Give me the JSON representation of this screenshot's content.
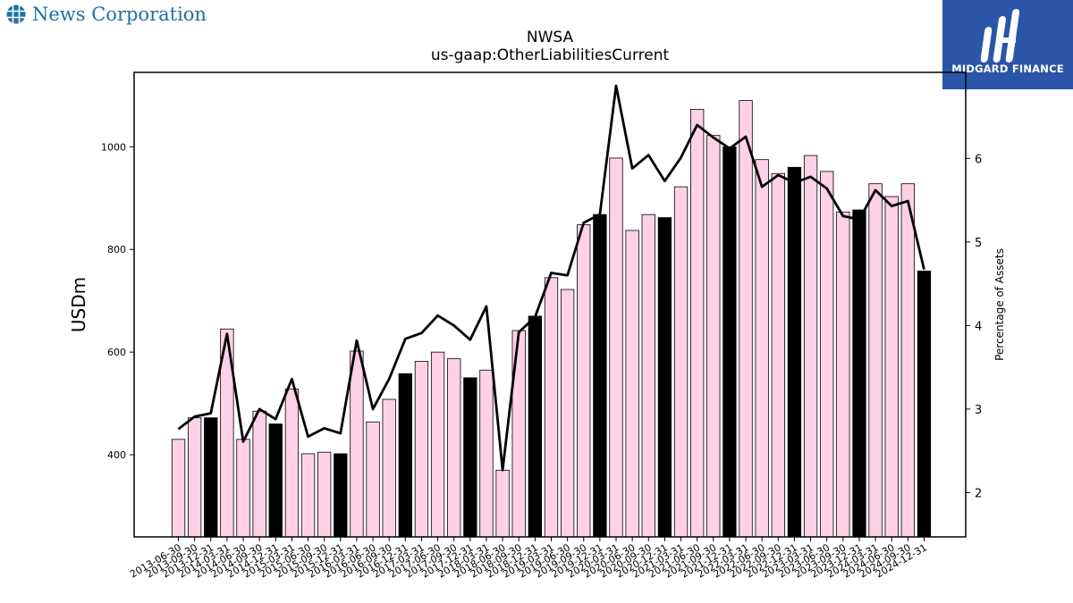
{
  "header": {
    "company_name": "News Corporation",
    "logo_text": "MIDGARD FINANCE"
  },
  "chart_data": {
    "type": "bar",
    "title": "NWSA",
    "subtitle": "us-gaap:OtherLiabilitiesCurrent",
    "ylabel": "USDm",
    "y2label": "Percentage of Assets",
    "ylim": [
      240,
      1145
    ],
    "y2lim": [
      1.47,
      7.03
    ],
    "yticks": [
      400,
      600,
      800,
      1000
    ],
    "y2ticks": [
      2,
      3,
      4,
      5,
      6
    ],
    "categories": [
      "2013-06-30",
      "2013-09-30",
      "2013-12-31",
      "2014-03-31",
      "2014-06-30",
      "2014-09-30",
      "2014-12-31",
      "2015-03-31",
      "2015-06-30",
      "2015-09-30",
      "2015-12-31",
      "2016-03-31",
      "2016-06-30",
      "2016-09-30",
      "2016-12-31",
      "2017-03-31",
      "2017-06-30",
      "2017-09-30",
      "2017-12-31",
      "2018-03-31",
      "2018-06-30",
      "2018-09-30",
      "2018-12-31",
      "2019-03-31",
      "2019-06-30",
      "2019-09-30",
      "2019-12-31",
      "2020-03-31",
      "2020-06-30",
      "2020-09-30",
      "2020-12-31",
      "2021-03-31",
      "2021-06-30",
      "2021-09-30",
      "2021-12-31",
      "2022-03-31",
      "2022-06-30",
      "2022-09-30",
      "2022-12-31",
      "2023-03-31",
      "2023-06-30",
      "2023-09-30",
      "2023-12-31",
      "2024-03-31",
      "2024-06-30",
      "2024-09-30",
      "2024-12-31"
    ],
    "series": [
      {
        "values": [
          430,
          472,
          472,
          645,
          430,
          485,
          460,
          528,
          402,
          405,
          402,
          602,
          464,
          508,
          558,
          582,
          600,
          587,
          550,
          565,
          370,
          642,
          670,
          745,
          722,
          848,
          868,
          978,
          837,
          868,
          862,
          922,
          1073,
          1022,
          1000,
          1090,
          975,
          948,
          960,
          983,
          952,
          873,
          877,
          928,
          903,
          928,
          758
        ],
        "highlight": [
          false,
          false,
          true,
          false,
          false,
          false,
          true,
          false,
          false,
          false,
          true,
          false,
          false,
          false,
          true,
          false,
          false,
          false,
          true,
          false,
          false,
          false,
          true,
          false,
          false,
          false,
          true,
          false,
          false,
          false,
          true,
          false,
          false,
          false,
          true,
          false,
          false,
          false,
          true,
          false,
          false,
          false,
          true,
          false,
          false,
          false,
          true
        ],
        "color": "#ffd1e6",
        "highlight_color": "#000000"
      },
      {
        "axis": "right",
        "type": "line",
        "color": "#000000",
        "values": [
          2.76,
          2.91,
          2.95,
          3.9,
          2.61,
          3.0,
          2.88,
          3.36,
          2.67,
          2.77,
          2.71,
          3.82,
          3.0,
          3.36,
          3.84,
          3.91,
          4.12,
          4.0,
          3.83,
          4.23,
          2.27,
          3.92,
          4.1,
          4.63,
          4.6,
          5.23,
          5.33,
          6.87,
          5.88,
          6.04,
          5.73,
          6.01,
          6.4,
          6.25,
          6.12,
          6.26,
          5.66,
          5.8,
          5.71,
          5.78,
          5.64,
          5.31,
          5.27,
          5.62,
          5.43,
          5.49,
          4.67
        ]
      }
    ]
  }
}
